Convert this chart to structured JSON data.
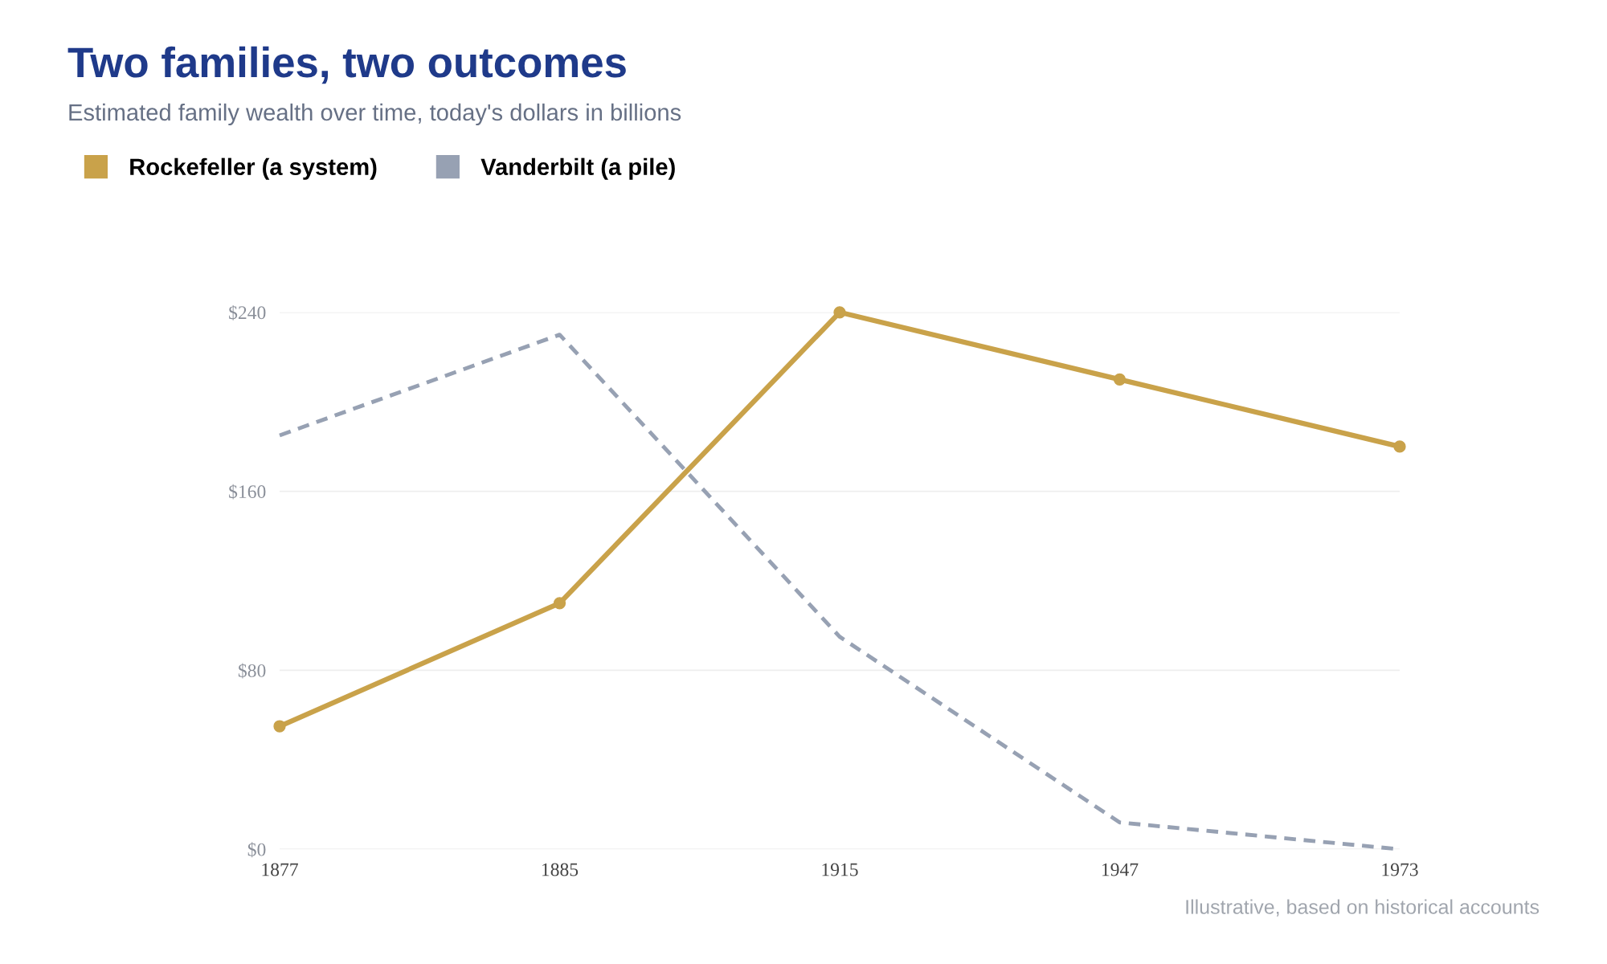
{
  "chart_data": {
    "type": "line",
    "title": "Two families, two outcomes",
    "subtitle": "Estimated family wealth over time, today's dollars in billions",
    "categories": [
      "1877",
      "1885",
      "1915",
      "1947",
      "1973"
    ],
    "series": [
      {
        "name": "Rockefeller (a system)",
        "color": "#c9a24a",
        "values": [
          55,
          110,
          240,
          210,
          180
        ],
        "line_style": "solid",
        "marker": "circle"
      },
      {
        "name": "Vanderbilt (a pile)",
        "color": "#97a1b3",
        "values": [
          185,
          230,
          95,
          12,
          0
        ],
        "line_style": "dashed",
        "marker": "none"
      }
    ],
    "ylim": [
      0,
      240
    ],
    "yticks": [
      {
        "value": 0,
        "label": "$0"
      },
      {
        "value": 80,
        "label": "$80"
      },
      {
        "value": 160,
        "label": "$160"
      },
      {
        "value": 240,
        "label": "$240"
      }
    ],
    "grid": "y",
    "legend": "top left",
    "annotations": [
      "Illustrative, based on historical accounts"
    ]
  }
}
